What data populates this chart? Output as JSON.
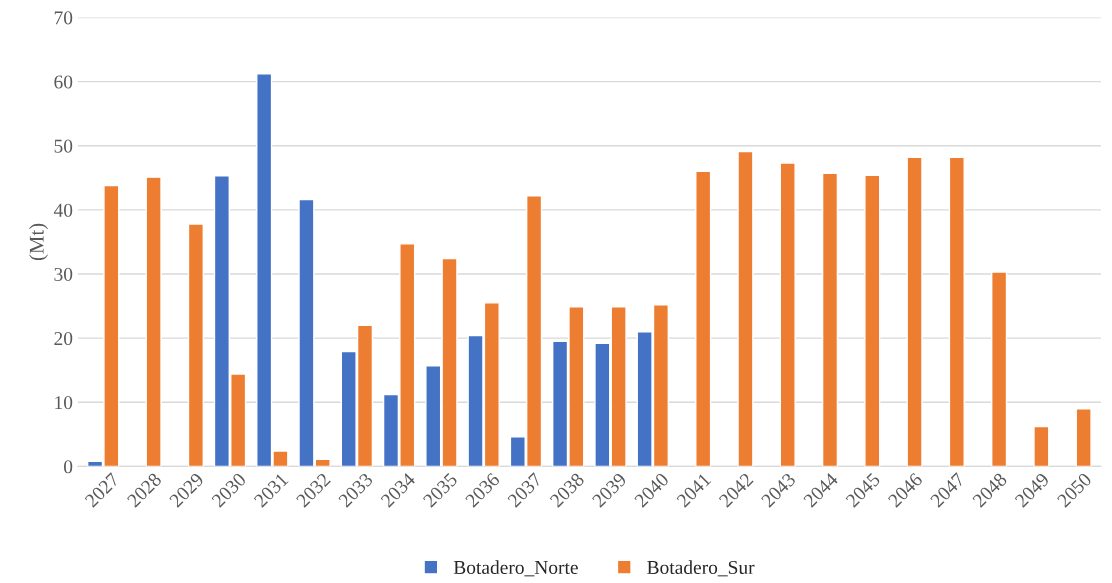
{
  "chart_data": {
    "type": "bar",
    "ylabel": "(Mt)",
    "categories": [
      "2027",
      "2028",
      "2029",
      "2030",
      "2031",
      "2032",
      "2033",
      "2034",
      "2035",
      "2036",
      "2037",
      "2038",
      "2039",
      "2040",
      "2041",
      "2042",
      "2043",
      "2044",
      "2045",
      "2046",
      "2047",
      "2048",
      "2049",
      "2050"
    ],
    "series": [
      {
        "name": "Botadero_Norte",
        "color": "#4472c4",
        "values": [
          0.8,
          null,
          null,
          45.3,
          61.2,
          41.6,
          17.9,
          11.2,
          15.7,
          20.4,
          4.6,
          19.5,
          19.2,
          21.0,
          null,
          null,
          null,
          null,
          null,
          null,
          null,
          null,
          null,
          null
        ]
      },
      {
        "name": "Botadero_Sur",
        "color": "#ed7d31",
        "values": [
          43.8,
          45.1,
          37.8,
          14.4,
          2.4,
          1.1,
          22.0,
          34.7,
          32.4,
          25.5,
          42.2,
          24.9,
          24.9,
          25.2,
          46.0,
          49.1,
          47.3,
          45.7,
          45.4,
          48.2,
          48.2,
          30.3,
          6.2,
          9.0
        ]
      }
    ],
    "ylim": [
      0,
      70
    ],
    "yticks": [
      0,
      10,
      20,
      30,
      40,
      50,
      60,
      70
    ],
    "grid": "y",
    "legend": "bottom"
  }
}
